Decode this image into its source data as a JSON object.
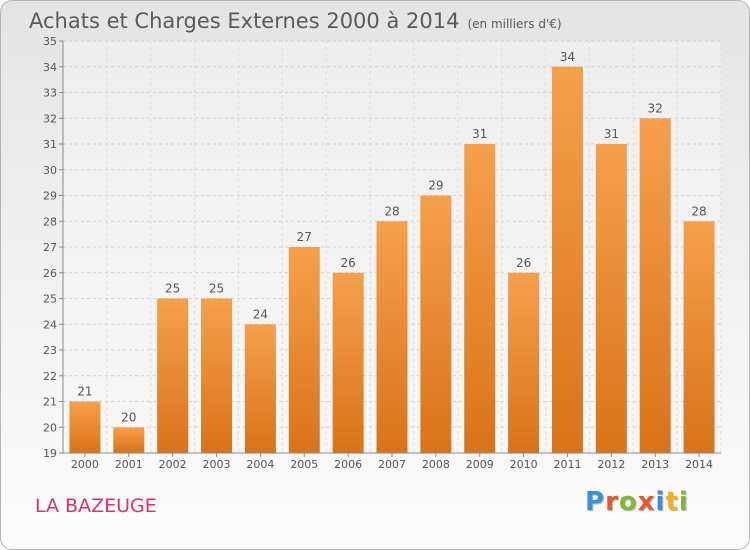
{
  "header": {
    "title": "Achats et Charges Externes 2000 à 2014",
    "unit": "(en milliers d'€)"
  },
  "footer": {
    "commune": "LA BAZEUGE",
    "brand": "Proxiti"
  },
  "colors": {
    "bar_top": "#f5a04c",
    "bar_bottom": "#d9731a",
    "text": "#555555",
    "commune": "#d9346b",
    "brand_letters": [
      "#3a8fd6",
      "#e8562a",
      "#7cb83a",
      "#e8562a",
      "#3a8fd6",
      "#f0b020",
      "#7cb83a"
    ]
  },
  "chart_data": {
    "type": "bar",
    "title": "Achats et Charges Externes 2000 à 2014",
    "subtitle": "(en milliers d'€)",
    "xlabel": "",
    "ylabel": "",
    "categories": [
      "2000",
      "2001",
      "2002",
      "2003",
      "2004",
      "2005",
      "2006",
      "2007",
      "2008",
      "2009",
      "2010",
      "2011",
      "2012",
      "2013",
      "2014"
    ],
    "values": [
      21,
      20,
      25,
      25,
      24,
      27,
      26,
      28,
      29,
      31,
      26,
      34,
      31,
      32,
      28
    ],
    "ylim": [
      19,
      35
    ],
    "yticks": [
      19,
      20,
      21,
      22,
      23,
      24,
      25,
      26,
      27,
      28,
      29,
      30,
      31,
      32,
      33,
      34,
      35
    ],
    "grid": true,
    "data_labels": true
  }
}
